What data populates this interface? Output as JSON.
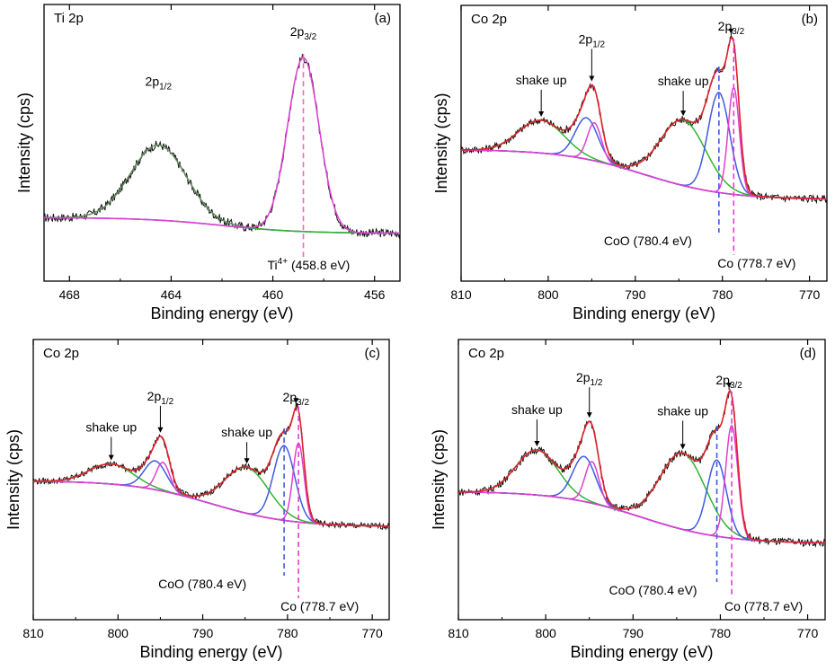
{
  "colors": {
    "raw": "#111111",
    "envelope": "#e0212a",
    "pink": "#e13fd1",
    "blue": "#3f5be0",
    "green": "#2fb52f",
    "background": "#7a4fd0",
    "dash": "#f06ab8"
  },
  "chart_data": [
    {
      "type": "line",
      "panel": "(a)",
      "element": "Ti 2p",
      "xlabel": "Binding energy (eV)",
      "ylabel": "Intensity (cps)",
      "xlim": [
        469,
        455
      ],
      "xticks": [
        468,
        464,
        460,
        456
      ],
      "xtick_labels": [
        "468",
        "464",
        "460",
        "456"
      ],
      "ylim": [
        0,
        1
      ],
      "background": {
        "left": 0.09,
        "right": 0.01
      },
      "components": [
        {
          "role": "2p1/2",
          "color": "green",
          "center": 464.5,
          "height": 0.38,
          "width": 1.1
        },
        {
          "role": "2p3/2",
          "color": "pink",
          "center": 458.8,
          "height": 0.88,
          "width": 0.62
        }
      ],
      "peak_labels": [
        {
          "base": "2p",
          "sub": "1/2",
          "x": 464.5
        },
        {
          "base": "2p",
          "sub": "3/2",
          "x": 458.8
        }
      ],
      "reference_lines": [
        {
          "x": 458.8,
          "label_base": "Ti",
          "label_sup": "4+",
          "label_rest": " (458.8 eV)"
        }
      ]
    },
    {
      "type": "line",
      "panel": "(b)",
      "element": "Co 2p",
      "xlabel": "Binding energy (eV)",
      "ylabel": "Intensity (cps)",
      "xlim": [
        810,
        768
      ],
      "xticks": [
        810,
        800,
        790,
        780,
        770
      ],
      "xtick_labels": [
        "810",
        "800",
        "790",
        "780",
        "770"
      ],
      "ylim": [
        0,
        1
      ],
      "background": {
        "left": 0.29,
        "right": 0.0
      },
      "components": [
        {
          "role": "shake-up",
          "color": "green",
          "center": 800.8,
          "height": 0.19,
          "width": 2.6
        },
        {
          "role": "2p1/2",
          "color": "blue",
          "center": 795.6,
          "height": 0.24,
          "width": 1.3
        },
        {
          "role": "2p1/2",
          "color": "pink",
          "center": 794.7,
          "height": 0.22,
          "width": 0.8
        },
        {
          "role": "shake-up",
          "color": "green",
          "center": 784.5,
          "height": 0.38,
          "width": 2.6
        },
        {
          "role": "CoO",
          "color": "blue",
          "center": 780.4,
          "height": 0.58,
          "width": 1.25
        },
        {
          "role": "Co",
          "color": "pink",
          "center": 778.7,
          "height": 0.62,
          "width": 0.65
        }
      ],
      "peak_labels": [
        {
          "base": "shake up",
          "sub": "",
          "x": 800.8
        },
        {
          "base": "2p",
          "sub": "1/2",
          "x": 795.0
        },
        {
          "base": "shake up",
          "sub": "",
          "x": 784.5
        },
        {
          "base": "2p",
          "sub": "3/2",
          "x": 779.0
        }
      ],
      "reference_lines": [
        {
          "x": 780.4,
          "label": "CoO (780.4 eV)",
          "color": "blue"
        },
        {
          "x": 778.7,
          "label": "Co (778.7 eV)",
          "color": "pink"
        }
      ]
    },
    {
      "type": "line",
      "panel": "(c)",
      "element": "Co 2p",
      "xlabel": "Binding energy (eV)",
      "ylabel": "Intensity (cps)",
      "xlim": [
        810,
        768
      ],
      "xticks": [
        810,
        800,
        790,
        780,
        770
      ],
      "xtick_labels": [
        "810",
        "800",
        "790",
        "780",
        "770"
      ],
      "ylim": [
        0,
        1
      ],
      "background": {
        "left": 0.33,
        "right": 0.01
      },
      "components": [
        {
          "role": "shake-up",
          "color": "green",
          "center": 800.8,
          "height": 0.14,
          "width": 2.6
        },
        {
          "role": "2p1/2",
          "color": "blue",
          "center": 795.6,
          "height": 0.2,
          "width": 1.3
        },
        {
          "role": "2p1/2",
          "color": "pink",
          "center": 794.7,
          "height": 0.2,
          "width": 0.8
        },
        {
          "role": "shake-up",
          "color": "green",
          "center": 784.8,
          "height": 0.32,
          "width": 2.6
        },
        {
          "role": "CoO",
          "color": "blue",
          "center": 780.4,
          "height": 0.52,
          "width": 1.25
        },
        {
          "role": "Co",
          "color": "pink",
          "center": 778.7,
          "height": 0.55,
          "width": 0.65
        }
      ],
      "peak_labels": [
        {
          "base": "shake up",
          "sub": "",
          "x": 800.8
        },
        {
          "base": "2p",
          "sub": "1/2",
          "x": 795.0
        },
        {
          "base": "shake up",
          "sub": "",
          "x": 784.8
        },
        {
          "base": "2p",
          "sub": "3/2",
          "x": 779.0
        }
      ],
      "reference_lines": [
        {
          "x": 780.4,
          "label": "CoO (780.4 eV)",
          "color": "blue"
        },
        {
          "x": 778.7,
          "label": "Co (778.7 eV)",
          "color": "pink"
        }
      ]
    },
    {
      "type": "line",
      "panel": "(d)",
      "element": "Co 2p",
      "xlabel": "Binding energy (eV)",
      "ylabel": "Intensity (cps)",
      "xlim": [
        810,
        768
      ],
      "xticks": [
        810,
        800,
        790,
        780,
        770
      ],
      "xtick_labels": [
        "810",
        "800",
        "790",
        "780",
        "770"
      ],
      "ylim": [
        0,
        1
      ],
      "background": {
        "left": 0.3,
        "right": 0.0
      },
      "components": [
        {
          "role": "shake-up",
          "color": "green",
          "center": 801.0,
          "height": 0.26,
          "width": 2.4
        },
        {
          "role": "2p1/2",
          "color": "blue",
          "center": 795.6,
          "height": 0.26,
          "width": 1.3
        },
        {
          "role": "2p1/2",
          "color": "pink",
          "center": 794.7,
          "height": 0.24,
          "width": 0.8
        },
        {
          "role": "shake-up",
          "color": "green",
          "center": 784.3,
          "height": 0.44,
          "width": 2.6
        },
        {
          "role": "CoO",
          "color": "blue",
          "center": 780.4,
          "height": 0.44,
          "width": 1.1
        },
        {
          "role": "Co",
          "color": "pink",
          "center": 778.7,
          "height": 0.65,
          "width": 0.7
        }
      ],
      "peak_labels": [
        {
          "base": "shake up",
          "sub": "",
          "x": 801.0
        },
        {
          "base": "2p",
          "sub": "1/2",
          "x": 795.0
        },
        {
          "base": "shake up",
          "sub": "",
          "x": 784.3
        },
        {
          "base": "2p",
          "sub": "3/2",
          "x": 779.0
        }
      ],
      "reference_lines": [
        {
          "x": 780.4,
          "label": "CoO (780.4 eV)",
          "color": "blue"
        },
        {
          "x": 778.7,
          "label": "Co (778.7 eV)",
          "color": "pink"
        }
      ]
    }
  ]
}
